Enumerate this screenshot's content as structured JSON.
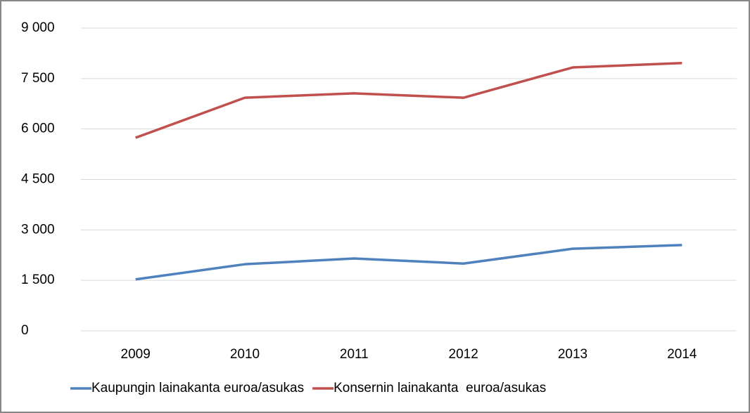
{
  "chart_data": {
    "type": "line",
    "categories": [
      "2009",
      "2010",
      "2011",
      "2012",
      "2013",
      "2014"
    ],
    "series": [
      {
        "name": "Kaupungin lainakanta euroa/asukas",
        "color": "#4f81bd",
        "values": [
          1530,
          1980,
          2150,
          2000,
          2440,
          2550
        ]
      },
      {
        "name": "Konsernin lainakanta  euroa/asukas",
        "color": "#c0504d",
        "values": [
          5740,
          6930,
          7060,
          6930,
          7830,
          7960
        ]
      }
    ],
    "ylim": [
      0,
      9000
    ],
    "yticks": [
      0,
      {
        "value": 1500,
        "label": "1 500"
      },
      {
        "value": 3000,
        "label": "3 000"
      },
      {
        "value": 4500,
        "label": "4 500"
      },
      {
        "value": 6000,
        "label": "6 000"
      },
      {
        "value": 7500,
        "label": "7 500"
      },
      {
        "value": 9000,
        "label": "9 000"
      }
    ],
    "grid": true,
    "legend": "bottom"
  }
}
